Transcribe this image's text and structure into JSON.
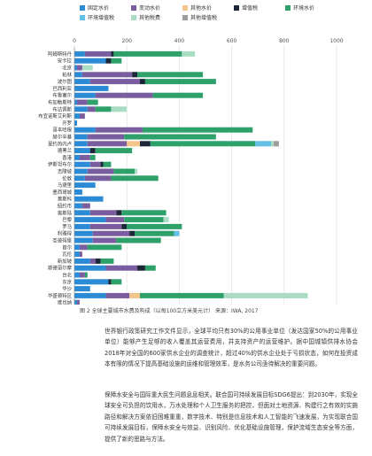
{
  "chart_data": {
    "type": "bar",
    "stacked": true,
    "orientation": "horizontal",
    "x_ticks": [
      0,
      200,
      400,
      600,
      800,
      1000
    ],
    "xlim": [
      0,
      1000
    ],
    "legend_position": "top",
    "grid": true,
    "series": [
      {
        "name": "固定水价",
        "color": "#2b8bd4",
        "values": [
          40,
          120,
          10,
          30,
          60,
          130,
          80,
          10,
          50,
          20,
          10,
          80,
          50,
          50,
          60,
          20,
          60,
          50,
          40,
          80,
          30,
          110,
          30,
          60,
          120,
          60,
          70,
          70,
          20,
          20,
          60,
          120,
          20,
          130,
          60,
          120,
          10
        ]
      },
      {
        "name": "变动水价",
        "color": "#7a5d9e",
        "values": [
          100,
          0,
          20,
          190,
          190,
          0,
          220,
          40,
          30,
          20,
          0,
          180,
          140,
          150,
          0,
          40,
          40,
          100,
          100,
          0,
          0,
          0,
          30,
          100,
          70,
          120,
          140,
          90,
          30,
          10,
          20,
          120,
          20,
          0,
          0,
          90,
          10
        ]
      },
      {
        "name": "其他水价",
        "color": "#f3c58a",
        "values": [
          0,
          0,
          0,
          0,
          0,
          0,
          0,
          0,
          0,
          0,
          0,
          0,
          0,
          50,
          0,
          0,
          0,
          0,
          0,
          0,
          0,
          0,
          0,
          0,
          0,
          0,
          0,
          0,
          0,
          0,
          0,
          0,
          0,
          0,
          0,
          40,
          0
        ]
      },
      {
        "name": "增值税",
        "color": "#1c2838",
        "values": [
          10,
          20,
          0,
          20,
          20,
          0,
          0,
          0,
          0,
          0,
          0,
          0,
          0,
          40,
          20,
          0,
          10,
          0,
          0,
          0,
          0,
          0,
          0,
          20,
          0,
          20,
          20,
          0,
          0,
          0,
          20,
          30,
          0,
          10,
          0,
          0,
          0
        ]
      },
      {
        "name": "环境水价",
        "color": "#2ea06a",
        "values": [
          260,
          40,
          0,
          250,
          270,
          0,
          190,
          40,
          60,
          0,
          0,
          420,
          350,
          400,
          140,
          20,
          30,
          80,
          180,
          0,
          0,
          0,
          0,
          170,
          150,
          210,
          150,
          170,
          130,
          0,
          50,
          40,
          10,
          40,
          0,
          320,
          0
        ]
      },
      {
        "name": "环境增值税",
        "color": "#64bfe6",
        "values": [
          0,
          0,
          0,
          0,
          0,
          0,
          0,
          0,
          0,
          0,
          0,
          0,
          0,
          60,
          0,
          0,
          0,
          0,
          0,
          0,
          0,
          0,
          0,
          0,
          0,
          0,
          20,
          0,
          0,
          0,
          0,
          0,
          0,
          0,
          0,
          0,
          0
        ]
      },
      {
        "name": "其他税费",
        "color": "#a9dcc2",
        "values": [
          50,
          0,
          40,
          0,
          0,
          0,
          0,
          0,
          60,
          0,
          0,
          0,
          0,
          10,
          0,
          0,
          0,
          10,
          0,
          0,
          0,
          0,
          0,
          0,
          20,
          0,
          0,
          0,
          0,
          0,
          0,
          0,
          0,
          0,
          0,
          320,
          0
        ]
      },
      {
        "name": "其他增值税",
        "color": "#9c9c9c",
        "values": [
          0,
          0,
          0,
          0,
          0,
          0,
          0,
          0,
          0,
          0,
          0,
          0,
          0,
          20,
          0,
          0,
          0,
          0,
          0,
          0,
          0,
          0,
          0,
          0,
          0,
          0,
          0,
          0,
          0,
          0,
          0,
          0,
          0,
          0,
          0,
          0,
          0
        ]
      }
    ],
    "categories": [
      "阿姆斯特丹",
      "安卡拉",
      "北京",
      "柏林",
      "波尔图",
      "巴西利亚",
      "布鲁塞尔",
      "布加勒斯特",
      "布达佩斯",
      "布宜诺斯艾利斯",
      "开罗",
      "哥本哈根",
      "赫尔辛基",
      "里约热内卢",
      "德黑兰",
      "香港",
      "伊斯坦布尔",
      "吉隆坡",
      "伦敦",
      "马德里",
      "墨西哥城",
      "莫斯科",
      "纽约市",
      "奥斯陆",
      "巴黎",
      "罗马",
      "利雅得",
      "圣彼得堡",
      "首尔",
      "瓦伦",
      "新加坡",
      "斯德哥尔摩",
      "台北",
      "东京",
      "华沙",
      "华盛顿特区",
      "维也纳"
    ]
  },
  "caption": "图 2  全球主要城市水费及构成（以每100立方米美元计）    来源：IWA, 2017",
  "paragraphs": [
    "世界银行政策研究工作文件显示，全球平均只有30%的公用事业单位（发达国家50%的公用事业单位）能够产生足够的收入覆盖其运营费用，并支持资产的运营维护。据中国城镇供排水协会2018年对全国的600家供水企业的调查统计，超过40%的供水企业处于亏损状态，如何在投资成本有限的情况下提高基础设施的运维和管理效率，是水务公司亟待解决的重要问题。",
    "保障水安全与国际重大民生问题息息相关。联合国可持续发展目标SDG6提出：到2030年，实现全球安全可负担的饮用水，万水处理和个人卫生服务的把控，但面对土地资源、构建行之有效的实施路径和解决方案依旧困难重重，数字技术、特别是信息技术和人工智能的飞速发展，为实现联合国可持续发展目标，保障水安全与效益、识别风险、优化基础设施管理，保护流域生态安全等方面，提供了新的思路与方法。"
  ]
}
